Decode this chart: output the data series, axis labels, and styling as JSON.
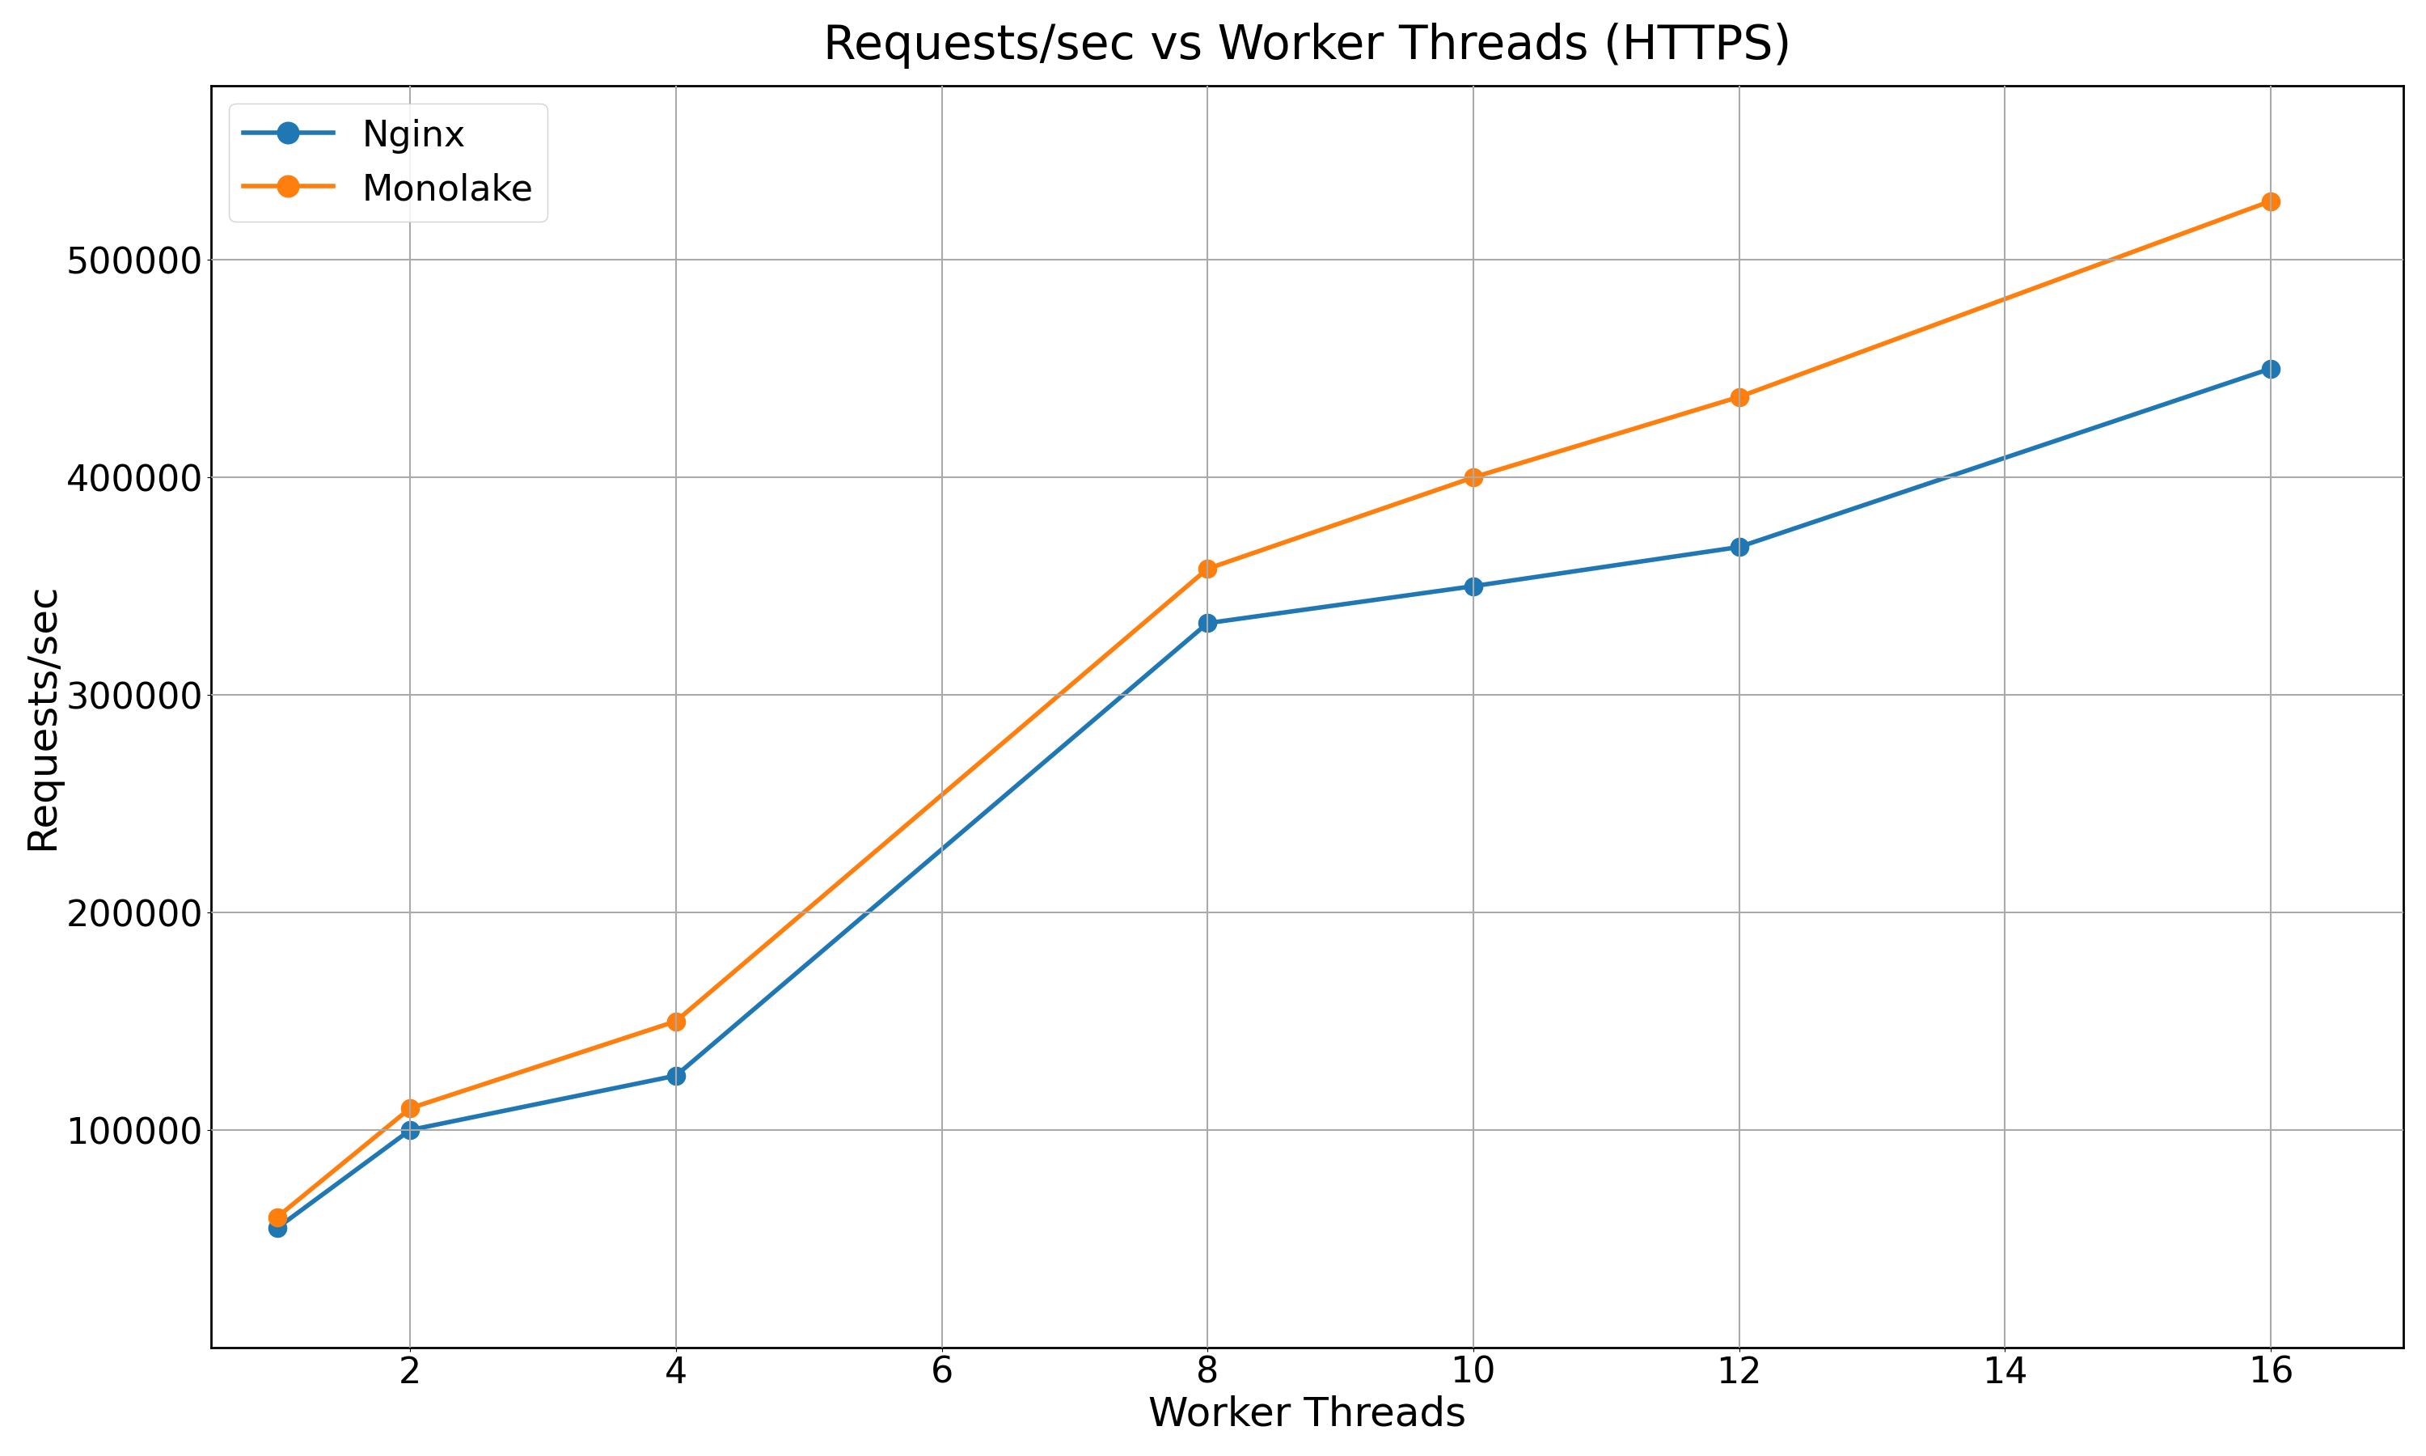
{
  "title": "Requests/sec vs Worker Threads (HTTPS)",
  "xlabel": "Worker Threads",
  "ylabel": "Requests/sec",
  "nginx": {
    "label": "Nginx",
    "color": "#1f77b4",
    "x": [
      1,
      2,
      4,
      8,
      10,
      12,
      16
    ],
    "y": [
      55000,
      100000,
      125000,
      333000,
      350000,
      368000,
      450000
    ]
  },
  "monolake": {
    "label": "Monolake",
    "color": "#ff7f0e",
    "x": [
      1,
      2,
      4,
      8,
      10,
      12,
      16
    ],
    "y": [
      60000,
      110000,
      150000,
      358000,
      400000,
      437000,
      527000
    ]
  },
  "xlim": [
    0.5,
    17
  ],
  "ylim": [
    0,
    580000
  ],
  "xticks": [
    2,
    4,
    6,
    8,
    10,
    12,
    14,
    16
  ],
  "yticks": [
    100000,
    200000,
    300000,
    400000,
    500000
  ],
  "marker": "o",
  "linewidth": 4.0,
  "markersize": 16,
  "title_fontsize": 42,
  "label_fontsize": 36,
  "tick_fontsize": 32,
  "legend_fontsize": 32,
  "grid_color": "#aaaaaa",
  "grid_linewidth": 1.5,
  "background_color": "#ffffff"
}
